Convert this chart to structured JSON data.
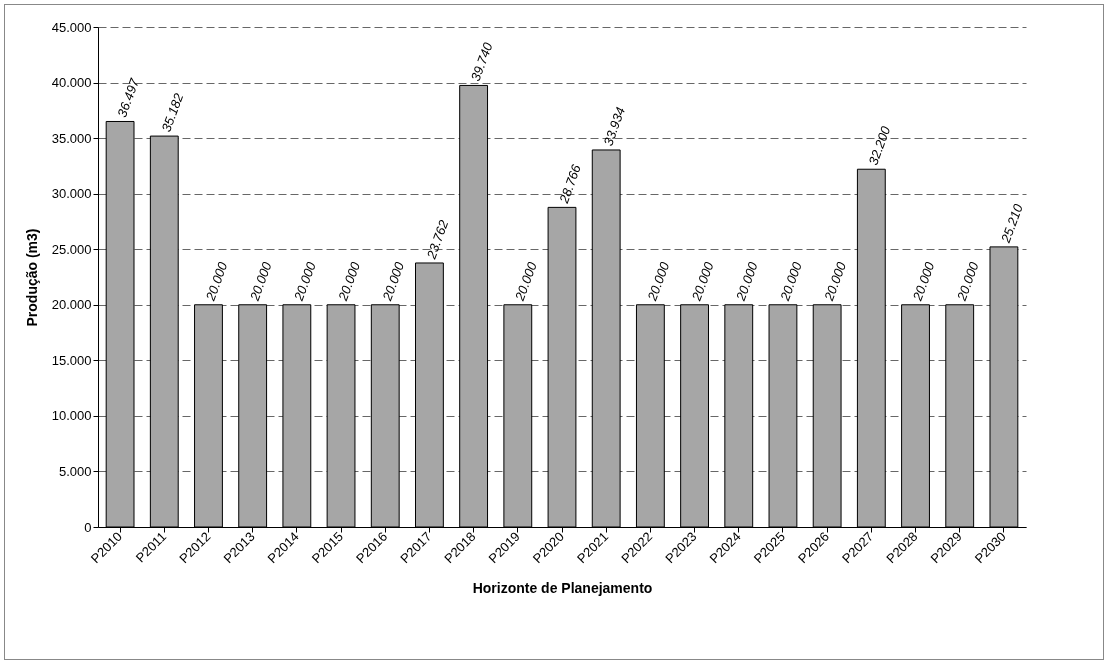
{
  "chart_data": {
    "type": "bar",
    "xlabel": "Horizonte de Planejamento",
    "ylabel": "Produção (m3)",
    "categories": [
      "P2010",
      "P2011",
      "P2012",
      "P2013",
      "P2014",
      "P2015",
      "P2016",
      "P2017",
      "P2018",
      "P2019",
      "P2020",
      "P2021",
      "P2022",
      "P2023",
      "P2024",
      "P2025",
      "P2026",
      "P2027",
      "P2028",
      "P2029",
      "P2030"
    ],
    "values": [
      36497,
      35182,
      20000,
      20000,
      20000,
      20000,
      20000,
      23762,
      39740,
      20000,
      28766,
      33934,
      20000,
      20000,
      20000,
      20000,
      20000,
      32200,
      20000,
      20000,
      25210
    ],
    "value_labels": [
      "36.497",
      "35.182",
      "20.000",
      "20.000",
      "20.000",
      "20.000",
      "20.000",
      "23.762",
      "39.740",
      "20.000",
      "28.766",
      "33.934",
      "20.000",
      "20.000",
      "20.000",
      "20.000",
      "20.000",
      "32.200",
      "20.000",
      "20.000",
      "25.210"
    ],
    "color": "#a6a6a6",
    "ylim": [
      0,
      45000
    ],
    "yticks": [
      0,
      {
        "value": 5000,
        "label": "5.000"
      },
      {
        "value": 10000,
        "label": "10.000"
      },
      {
        "value": 15000,
        "label": "15.000"
      },
      {
        "value": 20000,
        "label": "20.000"
      },
      {
        "value": 25000,
        "label": "25.000"
      },
      {
        "value": 30000,
        "label": "30.000"
      },
      {
        "value": 35000,
        "label": "35.000"
      },
      {
        "value": 40000,
        "label": "40.000"
      },
      {
        "value": 45000,
        "label": "45.000"
      }
    ],
    "grid": "y"
  }
}
